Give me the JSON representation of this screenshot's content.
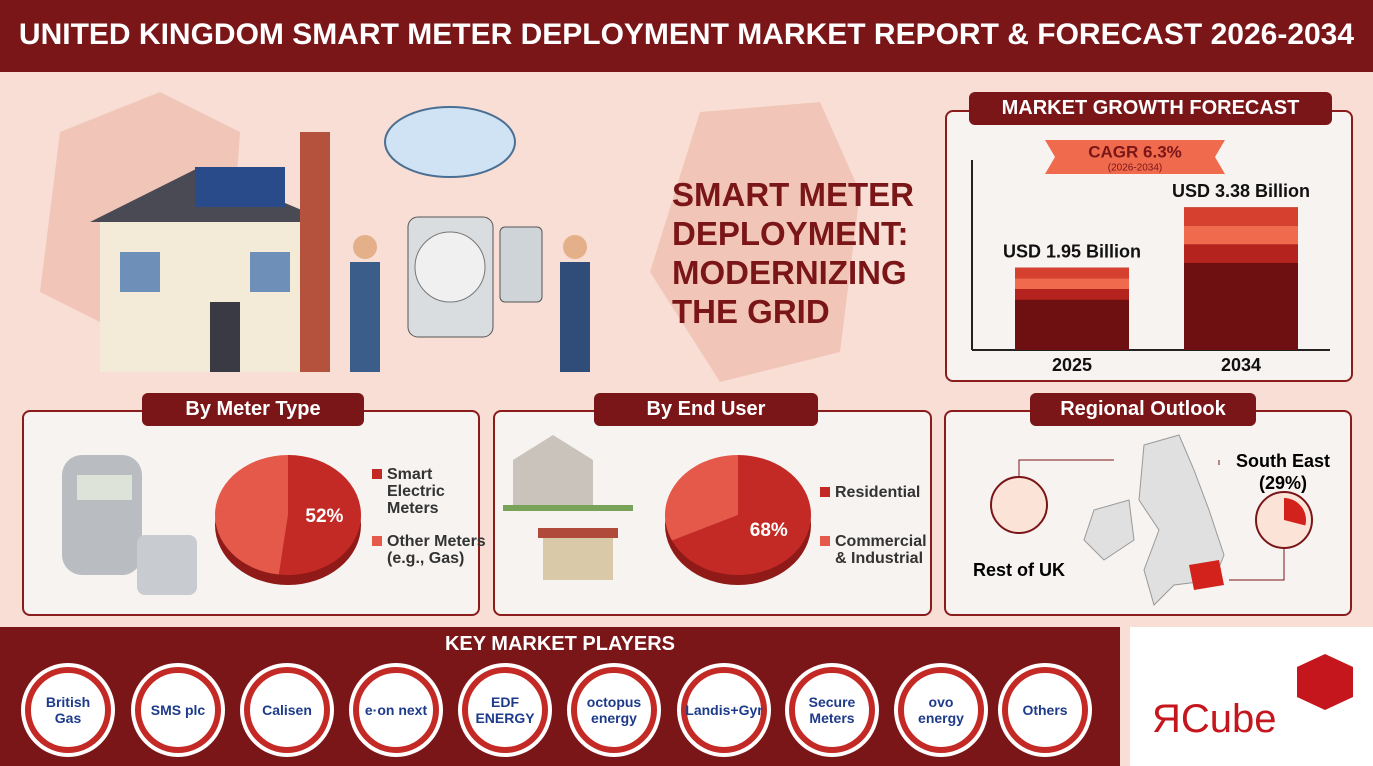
{
  "header": {
    "title": "UNITED KINGDOM SMART METER DEPLOYMENT MARKET REPORT & FORECAST 2026-2034"
  },
  "hero": {
    "headline": [
      "SMART METER",
      "DEPLOYMENT:",
      "MODERNIZING",
      "THE GRID"
    ]
  },
  "chart_data": [
    {
      "type": "bar",
      "title": "MARKET GROWTH FORECAST",
      "annotation": "CAGR 6.3%",
      "annotation_note": "(2026-2034)",
      "categories": [
        "2025",
        "2034"
      ],
      "values": [
        1.95,
        3.38
      ],
      "value_labels": [
        "USD 1.95 Billion",
        "USD 3.38 Billion"
      ],
      "ylim": [
        0,
        4.5
      ],
      "color": "#6e0f12"
    },
    {
      "type": "pie",
      "title": "By Meter Type",
      "categories": [
        "Smart Electric Meters",
        "Other Meters (e.g., Gas)"
      ],
      "values": [
        52,
        48
      ],
      "value_labels": [
        "52%",
        null
      ],
      "colors": [
        "#c42a25",
        "#e4594a"
      ]
    },
    {
      "type": "pie",
      "title": "By End User",
      "categories": [
        "Residential",
        "Commercial & Industrial"
      ],
      "values": [
        68,
        32
      ],
      "value_labels": [
        "68%",
        null
      ],
      "colors": [
        "#c42a25",
        "#e4594a"
      ]
    }
  ],
  "regional": {
    "title": "Regional Outlook",
    "rest_label": "Rest of UK",
    "highlight_label": "South East",
    "highlight_share": 29,
    "highlight_share_label": "(29%)"
  },
  "players": {
    "title": "KEY MARKET PLAYERS",
    "names": [
      "British Gas",
      "SMS plc",
      "Calisen",
      "e·on next",
      "EDF ENERGY",
      "octopus energy",
      "Landis+Gyr",
      "Secure Meters",
      "ovo energy",
      "Others"
    ]
  },
  "brand": {
    "logo": "ЯCube"
  }
}
